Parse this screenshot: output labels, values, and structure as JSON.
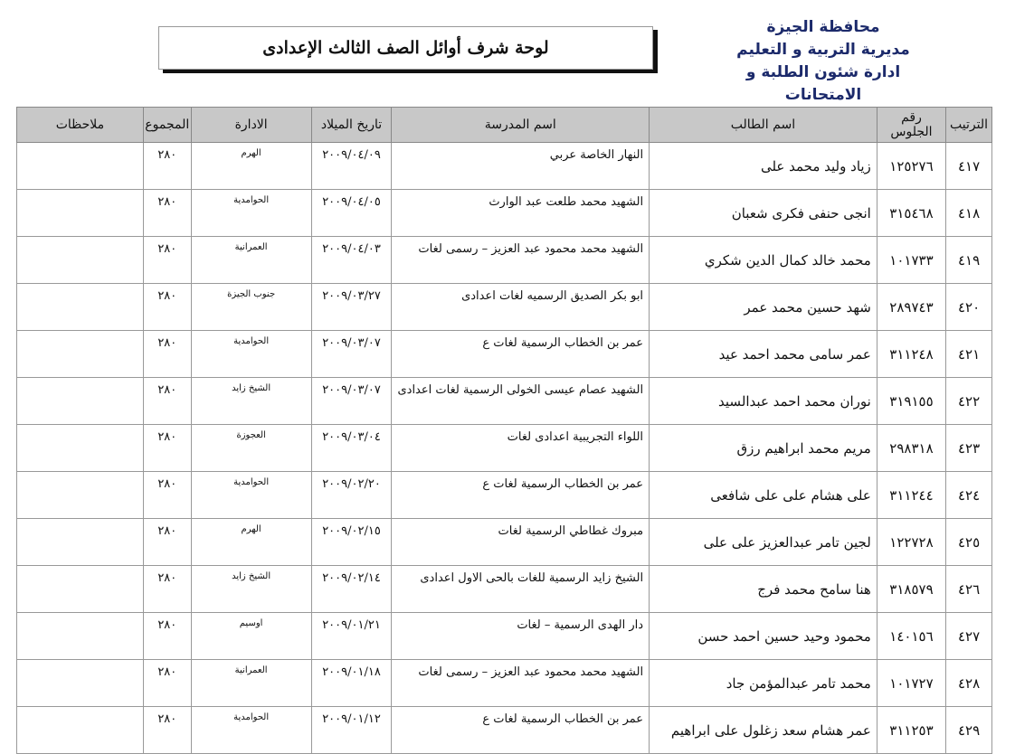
{
  "org": [
    "محافظة الجيزة",
    "مديرية التربية و التعليم",
    "ادارة شئون الطلبة و الامتحانات"
  ],
  "title": "لوحة شرف أوائل الصف الثالث الإعدادى",
  "headers": [
    "الترتيب",
    "رقم الجلوس",
    "اسم الطالب",
    "اسم المدرسة",
    "تاريخ الميلاد",
    "الادارة",
    "المجموع",
    "ملاحظات"
  ],
  "rows": [
    [
      "٤١٧",
      "١٢٥٢٧٦",
      "زياد وليد محمد على",
      "النهار الخاصة عربي",
      "٢٠٠٩/٠٤/٠٩",
      "الهرم",
      "٢٨٠",
      ""
    ],
    [
      "٤١٨",
      "٣١٥٤٦٨",
      "انجى حنفى فكرى شعبان",
      "الشهيد محمد طلعت عبد الوارث",
      "٢٠٠٩/٠٤/٠٥",
      "الحوامدية",
      "٢٨٠",
      ""
    ],
    [
      "٤١٩",
      "١٠١٧٣٣",
      "محمد خالد كمال الدين شكري",
      "الشهيد محمد محمود عبد العزيز – رسمى لغات",
      "٢٠٠٩/٠٤/٠٣",
      "العمرانية",
      "٢٨٠",
      ""
    ],
    [
      "٤٢٠",
      "٢٨٩٧٤٣",
      "شهد حسين محمد عمر",
      "ابو بكر الصديق الرسميه لغات اعدادى",
      "٢٠٠٩/٠٣/٢٧",
      "جنوب الجيزة",
      "٢٨٠",
      ""
    ],
    [
      "٤٢١",
      "٣١١٢٤٨",
      "عمر سامى محمد احمد عيد",
      "عمر بن الخطاب الرسمية لغات ع",
      "٢٠٠٩/٠٣/٠٧",
      "الحوامدية",
      "٢٨٠",
      ""
    ],
    [
      "٤٢٢",
      "٣١٩١٥٥",
      "نوران محمد احمد عبدالسيد",
      "الشهيد عصام عيسى الخولى الرسمية لغات اعدادى",
      "٢٠٠٩/٠٣/٠٧",
      "الشيخ زايد",
      "٢٨٠",
      ""
    ],
    [
      "٤٢٣",
      "٢٩٨٣١٨",
      "مريم محمد ابراهيم رزق",
      "اللواء التجريبية اعدادى لغات",
      "٢٠٠٩/٠٣/٠٤",
      "العجوزة",
      "٢٨٠",
      ""
    ],
    [
      "٤٢٤",
      "٣١١٢٤٤",
      "على هشام على على شافعى",
      "عمر بن الخطاب الرسمية لغات ع",
      "٢٠٠٩/٠٢/٢٠",
      "الحوامدية",
      "٢٨٠",
      ""
    ],
    [
      "٤٢٥",
      "١٢٢٧٢٨",
      "لجين تامر عبدالعزيز على على",
      "مبروك غطاطي الرسمية لغات",
      "٢٠٠٩/٠٢/١٥",
      "الهرم",
      "٢٨٠",
      ""
    ],
    [
      "٤٢٦",
      "٣١٨٥٧٩",
      "هنا سامح محمد فرج",
      "الشيخ زايد الرسمية للغات بالحى الاول اعدادى",
      "٢٠٠٩/٠٢/١٤",
      "الشيخ زايد",
      "٢٨٠",
      ""
    ],
    [
      "٤٢٧",
      "١٤٠١٥٦",
      "محمود وحيد حسين احمد حسن",
      "دار الهدى الرسمية – لغات",
      "٢٠٠٩/٠١/٢١",
      "اوسيم",
      "٢٨٠",
      ""
    ],
    [
      "٤٢٨",
      "١٠١٧٢٧",
      "محمد تامر عبدالمؤمن جاد",
      "الشهيد محمد محمود عبد العزيز – رسمى لغات",
      "٢٠٠٩/٠١/١٨",
      "العمرانية",
      "٢٨٠",
      ""
    ],
    [
      "٤٢٩",
      "٣١١٢٥٣",
      "عمر هشام سعد زغلول على ابراهيم",
      "عمر بن الخطاب الرسمية لغات ع",
      "٢٠٠٩/٠١/١٢",
      "الحوامدية",
      "٢٨٠",
      ""
    ]
  ]
}
